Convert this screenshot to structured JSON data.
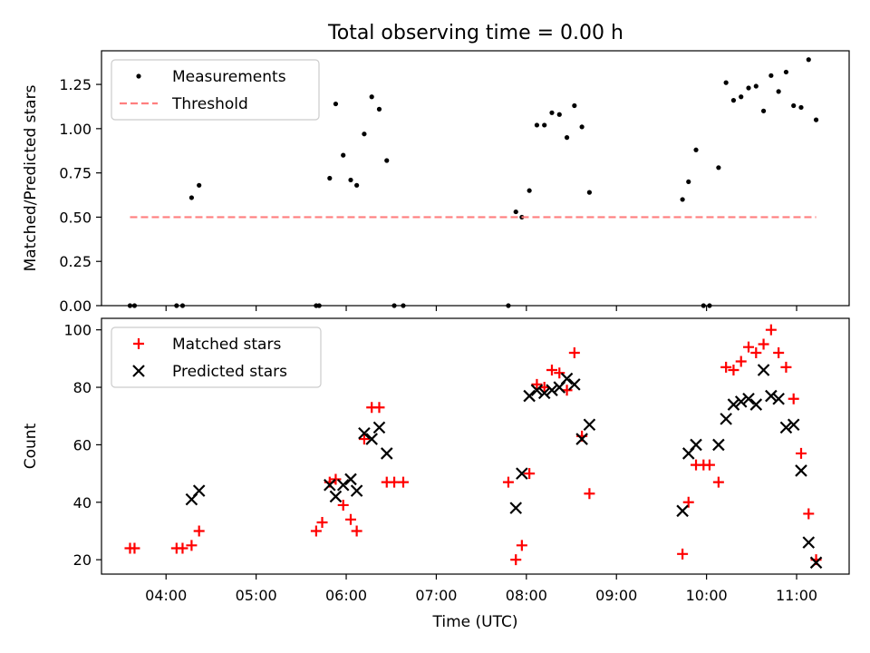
{
  "figure": {
    "title": "Total observing time = 0.00 h"
  },
  "chart_data": [
    {
      "type": "scatter",
      "title": "Total observing time = 0.00 h",
      "xlabel": "",
      "ylabel": "Matched/Predicted stars",
      "xlim": [
        "03:17",
        "11:35"
      ],
      "ylim": [
        0,
        1.44
      ],
      "yticks": [
        0.0,
        0.25,
        0.5,
        0.75,
        1.0,
        1.25
      ],
      "ytick_labels": [
        "0.00",
        "0.25",
        "0.50",
        "0.75",
        "1.00",
        "1.25"
      ],
      "xticks": [
        "04:00",
        "05:00",
        "06:00",
        "07:00",
        "08:00",
        "09:00",
        "10:00",
        "11:00"
      ],
      "show_xtick_labels": false,
      "grid": false,
      "legend": "top-left",
      "series": [
        {
          "name": "Measurements",
          "kind": "points",
          "color": "#000000",
          "points": [
            [
              "03:36",
              0.0
            ],
            [
              "03:39",
              0.0
            ],
            [
              "04:07",
              0.0
            ],
            [
              "04:11",
              0.0
            ],
            [
              "04:17",
              0.61
            ],
            [
              "04:22",
              0.68
            ],
            [
              "05:40",
              0.0
            ],
            [
              "05:42",
              0.0
            ],
            [
              "05:49",
              0.72
            ],
            [
              "05:53",
              1.14
            ],
            [
              "05:58",
              0.85
            ],
            [
              "06:03",
              0.71
            ],
            [
              "06:07",
              0.68
            ],
            [
              "06:12",
              0.97
            ],
            [
              "06:17",
              1.18
            ],
            [
              "06:22",
              1.11
            ],
            [
              "06:27",
              0.82
            ],
            [
              "06:32",
              0.0
            ],
            [
              "06:38",
              0.0
            ],
            [
              "07:48",
              0.0
            ],
            [
              "07:53",
              0.53
            ],
            [
              "07:57",
              0.5
            ],
            [
              "08:02",
              0.65
            ],
            [
              "08:07",
              1.02
            ],
            [
              "08:12",
              1.02
            ],
            [
              "08:17",
              1.09
            ],
            [
              "08:22",
              1.08
            ],
            [
              "08:27",
              0.95
            ],
            [
              "08:32",
              1.13
            ],
            [
              "08:37",
              1.01
            ],
            [
              "08:42",
              0.64
            ],
            [
              "09:44",
              0.6
            ],
            [
              "09:48",
              0.7
            ],
            [
              "09:53",
              0.88
            ],
            [
              "09:58",
              0.0
            ],
            [
              "10:02",
              0.0
            ],
            [
              "10:08",
              0.78
            ],
            [
              "10:13",
              1.26
            ],
            [
              "10:18",
              1.16
            ],
            [
              "10:23",
              1.18
            ],
            [
              "10:28",
              1.23
            ],
            [
              "10:33",
              1.24
            ],
            [
              "10:38",
              1.1
            ],
            [
              "10:43",
              1.3
            ],
            [
              "10:48",
              1.21
            ],
            [
              "10:53",
              1.32
            ],
            [
              "10:58",
              1.13
            ],
            [
              "11:03",
              1.12
            ],
            [
              "11:08",
              1.39
            ],
            [
              "11:13",
              1.05
            ]
          ]
        },
        {
          "name": "Threshold",
          "kind": "dashed-line",
          "color": "#ff7f7f",
          "points": [
            [
              "03:36",
              0.5
            ],
            [
              "11:13",
              0.5
            ]
          ]
        }
      ]
    },
    {
      "type": "scatter",
      "title": "",
      "xlabel": "Time (UTC)",
      "ylabel": "Count",
      "xlim": [
        "03:17",
        "11:35"
      ],
      "ylim": [
        15,
        104
      ],
      "yticks": [
        20,
        40,
        60,
        80,
        100
      ],
      "xticks": [
        "04:00",
        "05:00",
        "06:00",
        "07:00",
        "08:00",
        "09:00",
        "10:00",
        "11:00"
      ],
      "show_xtick_labels": true,
      "grid": false,
      "legend": "top-left",
      "series": [
        {
          "name": "Matched stars",
          "kind": "plus",
          "color": "#ff0000",
          "points": [
            [
              "03:36",
              24
            ],
            [
              "03:39",
              24
            ],
            [
              "04:07",
              24
            ],
            [
              "04:11",
              24
            ],
            [
              "04:17",
              25
            ],
            [
              "04:22",
              30
            ],
            [
              "05:40",
              30
            ],
            [
              "05:44",
              33
            ],
            [
              "05:49",
              47
            ],
            [
              "05:53",
              48
            ],
            [
              "05:58",
              39
            ],
            [
              "06:03",
              34
            ],
            [
              "06:07",
              30
            ],
            [
              "06:12",
              62
            ],
            [
              "06:17",
              73
            ],
            [
              "06:22",
              73
            ],
            [
              "06:27",
              47
            ],
            [
              "06:32",
              47
            ],
            [
              "06:38",
              47
            ],
            [
              "07:48",
              47
            ],
            [
              "07:53",
              20
            ],
            [
              "07:57",
              25
            ],
            [
              "08:02",
              50
            ],
            [
              "08:07",
              81
            ],
            [
              "08:12",
              80
            ],
            [
              "08:17",
              86
            ],
            [
              "08:22",
              85
            ],
            [
              "08:27",
              79
            ],
            [
              "08:32",
              92
            ],
            [
              "08:37",
              63
            ],
            [
              "08:42",
              43
            ],
            [
              "09:44",
              22
            ],
            [
              "09:48",
              40
            ],
            [
              "09:53",
              53
            ],
            [
              "09:58",
              53
            ],
            [
              "10:02",
              53
            ],
            [
              "10:08",
              47
            ],
            [
              "10:13",
              87
            ],
            [
              "10:18",
              86
            ],
            [
              "10:23",
              89
            ],
            [
              "10:28",
              94
            ],
            [
              "10:33",
              92
            ],
            [
              "10:38",
              95
            ],
            [
              "10:43",
              100
            ],
            [
              "10:48",
              92
            ],
            [
              "10:53",
              87
            ],
            [
              "10:58",
              76
            ],
            [
              "11:03",
              57
            ],
            [
              "11:08",
              36
            ],
            [
              "11:13",
              20
            ]
          ]
        },
        {
          "name": "Predicted stars",
          "kind": "x",
          "color": "#000000",
          "points": [
            [
              "04:17",
              41
            ],
            [
              "04:22",
              44
            ],
            [
              "05:49",
              46
            ],
            [
              "05:53",
              42
            ],
            [
              "05:58",
              46
            ],
            [
              "06:03",
              48
            ],
            [
              "06:07",
              44
            ],
            [
              "06:12",
              64
            ],
            [
              "06:17",
              62
            ],
            [
              "06:22",
              66
            ],
            [
              "06:27",
              57
            ],
            [
              "07:53",
              38
            ],
            [
              "07:57",
              50
            ],
            [
              "08:02",
              77
            ],
            [
              "08:07",
              79
            ],
            [
              "08:12",
              78
            ],
            [
              "08:17",
              79
            ],
            [
              "08:22",
              80
            ],
            [
              "08:27",
              83
            ],
            [
              "08:32",
              81
            ],
            [
              "08:37",
              62
            ],
            [
              "08:42",
              67
            ],
            [
              "09:44",
              37
            ],
            [
              "09:48",
              57
            ],
            [
              "09:53",
              60
            ],
            [
              "10:08",
              60
            ],
            [
              "10:13",
              69
            ],
            [
              "10:18",
              74
            ],
            [
              "10:23",
              75
            ],
            [
              "10:28",
              76
            ],
            [
              "10:33",
              74
            ],
            [
              "10:38",
              86
            ],
            [
              "10:43",
              77
            ],
            [
              "10:48",
              76
            ],
            [
              "10:53",
              66
            ],
            [
              "10:58",
              67
            ],
            [
              "11:03",
              51
            ],
            [
              "11:08",
              26
            ],
            [
              "11:13",
              19
            ]
          ]
        }
      ]
    }
  ]
}
